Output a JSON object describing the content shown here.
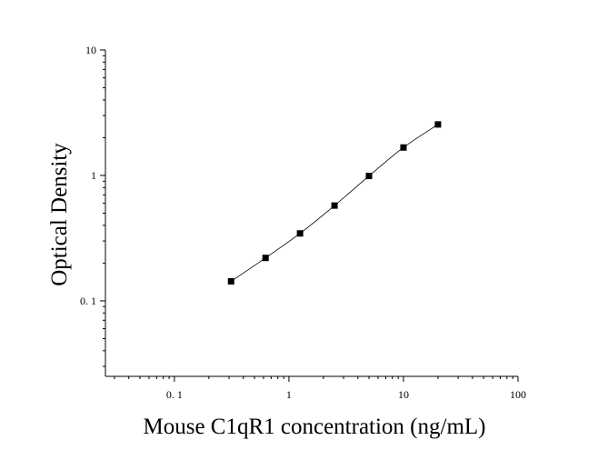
{
  "chart_data": {
    "type": "scatter",
    "title": "",
    "xlabel": "Mouse C1qR1 concentration (ng/mL)",
    "ylabel": "Optical Density",
    "xscale": "log",
    "yscale": "log",
    "xlim": [
      0.025,
      100
    ],
    "ylim": [
      0.025,
      10
    ],
    "x_ticks": [
      {
        "value": 0.1,
        "label": "0. 1"
      },
      {
        "value": 1,
        "label": "1"
      },
      {
        "value": 10,
        "label": "10"
      },
      {
        "value": 100,
        "label": "100"
      }
    ],
    "y_ticks": [
      {
        "value": 0.1,
        "label": "0. 1"
      },
      {
        "value": 1,
        "label": "1"
      },
      {
        "value": 10,
        "label": "10"
      }
    ],
    "series": [
      {
        "marker": "square",
        "color": "#000000",
        "x": [
          0.3125,
          0.625,
          1.25,
          2.5,
          5,
          10,
          20
        ],
        "y": [
          0.143,
          0.22,
          0.345,
          0.575,
          0.99,
          1.67,
          2.55
        ]
      }
    ],
    "fit_curve": true,
    "grid": false,
    "legend": "none"
  }
}
